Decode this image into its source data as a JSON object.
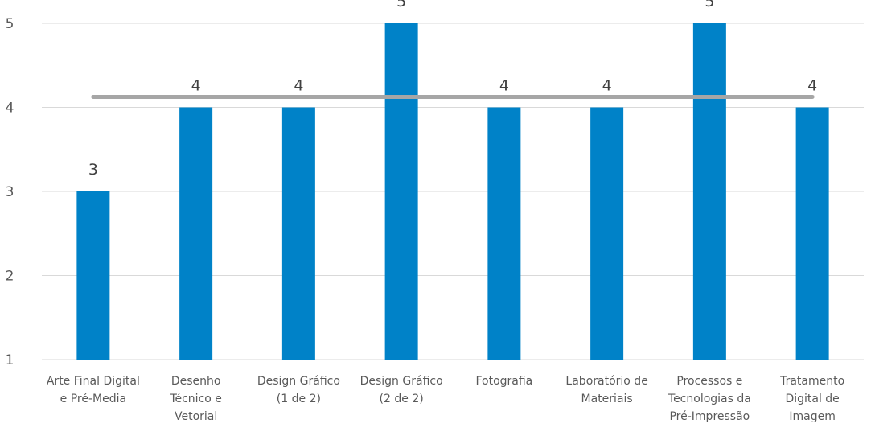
{
  "chart_data": {
    "type": "bar",
    "categories": [
      [
        "Arte Final Digital",
        "e Pré-Media"
      ],
      [
        "Desenho",
        "Técnico e",
        "Vetorial"
      ],
      [
        "Design Gráfico",
        "(1 de 2)"
      ],
      [
        "Design Gráfico",
        "(2 de 2)"
      ],
      [
        "Fotografia"
      ],
      [
        "Laboratório de",
        "Materiais"
      ],
      [
        "Processos e",
        "Tecnologias da",
        "Pré-Impressão"
      ],
      [
        "Tratamento",
        "Digital de",
        "Imagem"
      ]
    ],
    "values": [
      3,
      4,
      4,
      5,
      4,
      4,
      5,
      4
    ],
    "data_labels": [
      "3",
      "4",
      "4",
      "5",
      "4",
      "4",
      "5",
      "4"
    ],
    "axis_values": [
      1,
      2,
      3,
      4,
      5
    ],
    "y_tick_labels": [
      "1",
      "2",
      "3",
      "4",
      "5"
    ],
    "ylim": [
      1,
      5
    ],
    "mean_line": 4.125,
    "grid": true,
    "legend": "none",
    "colors": {
      "bar": "#0082C8",
      "mean_line": "#A6A6A6",
      "grid": "#D9D9D9"
    },
    "title": "",
    "xlabel": "",
    "ylabel": ""
  }
}
